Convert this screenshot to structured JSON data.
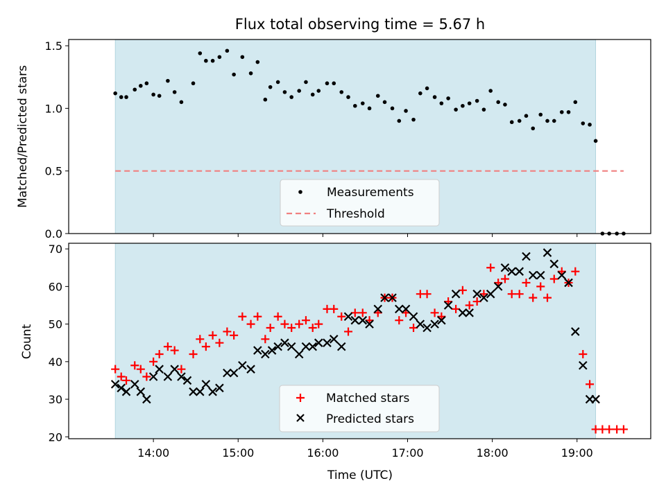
{
  "chart_data": [
    {
      "type": "scatter",
      "title": "Flux total observing time = 5.67 h",
      "ylabel": "Matched/Predicted stars",
      "xlabel": "",
      "ylim": [
        0,
        1.55
      ],
      "yticks": [
        "0.0",
        "0.5",
        "1.0",
        "1.5"
      ],
      "x_unit": "hours UTC",
      "shaded_interval": [
        13.55,
        19.22
      ],
      "shade_color": "#d3e9f0",
      "legend": {
        "placement": "lower-center",
        "entries": [
          "Measurements",
          "Threshold"
        ]
      },
      "series": [
        {
          "name": "Measurements",
          "marker": "dot",
          "color": "#000000",
          "x": [
            13.55,
            13.62,
            13.68,
            13.78,
            13.85,
            13.92,
            14.0,
            14.07,
            14.17,
            14.25,
            14.33,
            14.47,
            14.55,
            14.62,
            14.7,
            14.78,
            14.87,
            14.95,
            15.05,
            15.15,
            15.23,
            15.32,
            15.38,
            15.47,
            15.55,
            15.63,
            15.72,
            15.8,
            15.88,
            15.95,
            16.05,
            16.13,
            16.22,
            16.3,
            16.38,
            16.47,
            16.55,
            16.65,
            16.73,
            16.82,
            16.9,
            16.98,
            17.07,
            17.15,
            17.23,
            17.32,
            17.4,
            17.48,
            17.57,
            17.65,
            17.73,
            17.82,
            17.9,
            17.98,
            18.07,
            18.15,
            18.23,
            18.32,
            18.4,
            18.48,
            18.57,
            18.65,
            18.73,
            18.82,
            18.9,
            18.98,
            19.07,
            19.15,
            19.22,
            19.3,
            19.38,
            19.47,
            19.55
          ],
          "y": [
            1.12,
            1.09,
            1.09,
            1.15,
            1.18,
            1.2,
            1.11,
            1.1,
            1.22,
            1.13,
            1.05,
            1.2,
            1.44,
            1.38,
            1.38,
            1.41,
            1.46,
            1.27,
            1.41,
            1.28,
            1.37,
            1.07,
            1.17,
            1.21,
            1.13,
            1.09,
            1.14,
            1.21,
            1.11,
            1.14,
            1.2,
            1.2,
            1.13,
            1.09,
            1.02,
            1.04,
            1.0,
            1.1,
            1.05,
            1.0,
            0.9,
            0.98,
            0.91,
            1.12,
            1.16,
            1.09,
            1.04,
            1.08,
            0.99,
            1.02,
            1.04,
            1.06,
            0.99,
            1.14,
            1.05,
            1.03,
            0.89,
            0.9,
            0.94,
            0.84,
            0.95,
            0.9,
            0.9,
            0.97,
            0.97,
            1.05,
            0.88,
            0.87,
            0.74,
            0.0,
            0.0,
            0.0,
            0.0
          ]
        },
        {
          "name": "Threshold",
          "style": "dashed",
          "color": "#f08080",
          "x": [
            13.55,
            19.55
          ],
          "y": [
            0.5,
            0.5
          ]
        }
      ]
    },
    {
      "type": "scatter",
      "title": "",
      "ylabel": "Count",
      "xlabel": "Time (UTC)",
      "ylim": [
        19.5,
        71.5
      ],
      "yticks": [
        "20",
        "30",
        "40",
        "50",
        "60",
        "70"
      ],
      "xlim": [
        13.0,
        19.87
      ],
      "xticks": [
        "14:00",
        "15:00",
        "16:00",
        "17:00",
        "18:00",
        "19:00"
      ],
      "xtick_values": [
        14,
        15,
        16,
        17,
        18,
        19
      ],
      "shaded_interval": [
        13.55,
        19.22
      ],
      "shade_color": "#d3e9f0",
      "legend": {
        "placement": "lower-center",
        "entries": [
          "Matched stars",
          "Predicted stars"
        ]
      },
      "series": [
        {
          "name": "Matched stars",
          "marker": "plus",
          "color": "#ff0000",
          "x": [
            13.55,
            13.62,
            13.68,
            13.78,
            13.85,
            13.92,
            14.0,
            14.07,
            14.17,
            14.25,
            14.33,
            14.47,
            14.55,
            14.62,
            14.7,
            14.78,
            14.87,
            14.95,
            15.05,
            15.15,
            15.23,
            15.32,
            15.38,
            15.47,
            15.55,
            15.63,
            15.72,
            15.8,
            15.88,
            15.95,
            16.05,
            16.13,
            16.22,
            16.3,
            16.38,
            16.47,
            16.55,
            16.65,
            16.73,
            16.82,
            16.9,
            16.98,
            17.07,
            17.15,
            17.23,
            17.32,
            17.4,
            17.48,
            17.57,
            17.65,
            17.73,
            17.82,
            17.9,
            17.98,
            18.07,
            18.15,
            18.23,
            18.32,
            18.4,
            18.48,
            18.57,
            18.65,
            18.73,
            18.82,
            18.9,
            18.98,
            19.07,
            19.15,
            19.22,
            19.3,
            19.38,
            19.47,
            19.55
          ],
          "y": [
            38,
            36,
            35,
            39,
            38,
            36,
            40,
            42,
            44,
            43,
            38,
            42,
            46,
            44,
            47,
            45,
            48,
            47,
            52,
            50,
            52,
            46,
            49,
            52,
            50,
            49,
            50,
            51,
            49,
            50,
            54,
            54,
            52,
            48,
            53,
            53,
            51,
            53,
            57,
            57,
            51,
            53,
            49,
            58,
            58,
            53,
            52,
            56,
            54,
            59,
            55,
            56,
            58,
            65,
            61,
            62,
            58,
            58,
            61,
            57,
            60,
            57,
            62,
            64,
            61,
            64,
            42,
            34,
            22,
            22,
            22,
            22,
            22
          ]
        },
        {
          "name": "Predicted stars",
          "marker": "x",
          "color": "#000000",
          "x": [
            13.55,
            13.62,
            13.68,
            13.78,
            13.85,
            13.92,
            14.0,
            14.07,
            14.17,
            14.25,
            14.33,
            14.4,
            14.47,
            14.55,
            14.62,
            14.7,
            14.78,
            14.87,
            14.95,
            15.05,
            15.15,
            15.23,
            15.32,
            15.4,
            15.47,
            15.55,
            15.63,
            15.72,
            15.8,
            15.88,
            15.95,
            16.05,
            16.13,
            16.22,
            16.3,
            16.38,
            16.47,
            16.55,
            16.65,
            16.73,
            16.82,
            16.9,
            16.98,
            17.07,
            17.15,
            17.23,
            17.32,
            17.4,
            17.48,
            17.57,
            17.65,
            17.73,
            17.82,
            17.9,
            17.98,
            18.07,
            18.15,
            18.23,
            18.32,
            18.4,
            18.48,
            18.57,
            18.65,
            18.73,
            18.82,
            18.9,
            18.98,
            19.07,
            19.15,
            19.22
          ],
          "y": [
            34,
            33,
            32,
            34,
            32,
            30,
            36,
            38,
            36,
            38,
            36,
            35,
            32,
            32,
            34,
            32,
            33,
            37,
            37,
            39,
            38,
            43,
            42,
            43,
            44,
            45,
            44,
            42,
            44,
            44,
            45,
            45,
            46,
            44,
            52,
            51,
            51,
            50,
            54,
            57,
            57,
            54,
            54,
            52,
            50,
            49,
            50,
            51,
            55,
            58,
            53,
            53,
            58,
            57,
            58,
            60,
            65,
            64,
            64,
            68,
            63,
            63,
            69,
            66,
            63,
            61,
            48,
            39,
            30,
            30
          ]
        }
      ]
    }
  ]
}
